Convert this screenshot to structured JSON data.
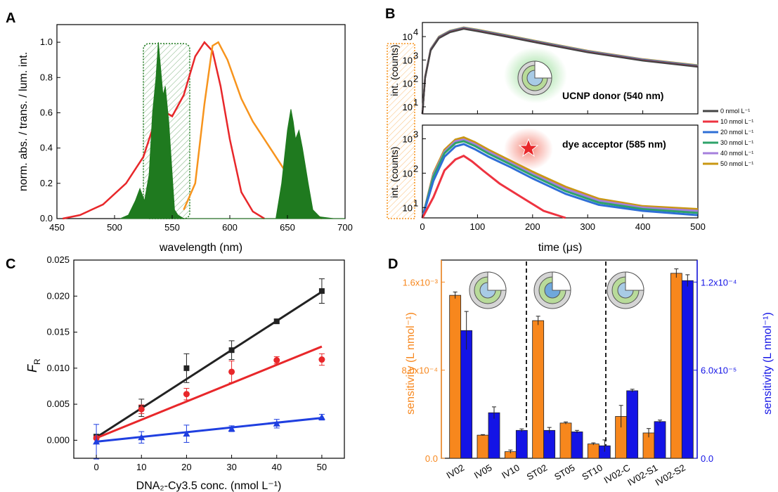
{
  "panels": {
    "A": {
      "letter": "A",
      "xlabel": "wavelength (nm)",
      "ylabel": "norm. abs. / trans. / lum. int.",
      "xticks": [
        "450",
        "500",
        "550",
        "600",
        "650",
        "700"
      ],
      "yticks": [
        "0.0",
        "0.2",
        "0.4",
        "0.6",
        "0.8",
        "1.0"
      ]
    },
    "B": {
      "letter": "B",
      "xlabel": "time (μs)",
      "ylabel_top": "int. (counts)",
      "ylabel_bottom": "int. (counts)",
      "xticks": [
        "0",
        "100",
        "200",
        "300",
        "400",
        "500"
      ],
      "top_yticks": [
        "10",
        "10",
        "10",
        "10"
      ],
      "top_yexp": [
        "1",
        "2",
        "3",
        "4"
      ],
      "bottom_yticks": [
        "10",
        "10",
        "10"
      ],
      "bottom_yexp": [
        "1",
        "2",
        "3"
      ],
      "label_top": "UCNP donor (540 nm)",
      "label_bottom": "dye acceptor (585 nm)",
      "legend": [
        "0 nmol L⁻¹",
        "10 nmol L⁻¹",
        "20 nmol L⁻¹",
        "30 nmol L⁻¹",
        "40 nmol L⁻¹",
        "50 nmol L⁻¹"
      ]
    },
    "C": {
      "letter": "C",
      "xlabel": "DNA₂-Cy3.5 conc. (nmol L⁻¹)",
      "ylabel": "F",
      "ylabel_sub": "R",
      "xticks": [
        "0",
        "10",
        "20",
        "30",
        "40",
        "50"
      ],
      "yticks": [
        "0.000",
        "0.005",
        "0.010",
        "0.015",
        "0.020",
        "0.025"
      ]
    },
    "D": {
      "letter": "D",
      "ylabel_left": "sensitivity (L nmol⁻¹)",
      "ylabel_right": "sensitivity (L nmol⁻¹)",
      "left_yticks": [
        "0.0",
        "8.0x10⁻⁴",
        "1.6x10⁻³"
      ],
      "right_yticks": [
        "0.0",
        "6.0x10⁻⁵",
        "1.2x10⁻⁴"
      ]
    }
  },
  "colors": {
    "green": "#1f7a1f",
    "red": "#e8272a",
    "orange": "#f7941d",
    "black": "#222222",
    "blue": "#1f3fe0",
    "bar_orange": "#f7871d",
    "bar_blue": "#1414e6",
    "conc0": "#444444",
    "conc10": "#ee3340",
    "conc20": "#2f6fd6",
    "conc30": "#2ea36a",
    "conc40": "#a57fdc",
    "conc50": "#c99712"
  },
  "chart_data": [
    {
      "panel": "A",
      "type": "line",
      "xlim": [
        450,
        700
      ],
      "ylim": [
        0,
        1.1
      ],
      "series": [
        {
          "color": "red",
          "x": [
            455,
            470,
            490,
            510,
            525,
            535,
            540,
            545,
            550,
            560,
            570,
            578,
            585,
            592,
            600,
            610,
            620,
            630
          ],
          "y": [
            0.0,
            0.02,
            0.08,
            0.2,
            0.35,
            0.55,
            0.6,
            0.6,
            0.58,
            0.7,
            0.92,
            1.0,
            0.95,
            0.75,
            0.45,
            0.15,
            0.04,
            0.0
          ]
        },
        {
          "color": "orange",
          "x": [
            560,
            570,
            578,
            585,
            590,
            598,
            610,
            620,
            630,
            640,
            650,
            660,
            670,
            680
          ],
          "y": [
            0.05,
            0.2,
            0.65,
            0.98,
            1.0,
            0.9,
            0.68,
            0.55,
            0.45,
            0.35,
            0.25,
            0.12,
            0.04,
            0.0
          ]
        },
        {
          "color": "green",
          "x": [
            505,
            512,
            518,
            522,
            526,
            530,
            533,
            536,
            538,
            540,
            542,
            544,
            547,
            550,
            552,
            555,
            560,
            640,
            645,
            650,
            653,
            655,
            657,
            660,
            663,
            668,
            672,
            678,
            690,
            700
          ],
          "y": [
            0,
            0.02,
            0.1,
            0.17,
            0.1,
            0.25,
            0.6,
            0.8,
            1.0,
            0.85,
            0.7,
            0.75,
            0.55,
            0.25,
            0.05,
            0.02,
            0.0,
            0.0,
            0.2,
            0.5,
            0.62,
            0.55,
            0.45,
            0.5,
            0.4,
            0.2,
            0.05,
            0.01,
            0,
            0
          ]
        }
      ]
    },
    {
      "panel": "B-top",
      "type": "line",
      "ylog": true,
      "xlim": [
        0,
        500
      ],
      "ylim": [
        5,
        40000
      ],
      "series": [
        {
          "color": "conc0",
          "x": [
            0,
            5,
            15,
            30,
            50,
            75,
            100,
            150,
            200,
            300,
            400,
            500
          ],
          "y": [
            5,
            200,
            3000,
            10000,
            18000,
            25000,
            20000,
            12000,
            7000,
            2500,
            1100,
            600
          ]
        }
      ]
    },
    {
      "panel": "B-bottom",
      "type": "line",
      "ylog": true,
      "xlim": [
        0,
        500
      ],
      "ylim": [
        5,
        2500
      ],
      "series": [
        {
          "color": "conc10",
          "x": [
            0,
            20,
            40,
            60,
            75,
            90,
            110,
            140,
            180,
            220,
            260
          ],
          "y": [
            5,
            20,
            120,
            250,
            320,
            220,
            120,
            50,
            20,
            8,
            5
          ]
        },
        {
          "color": "conc20",
          "x": [
            0,
            20,
            40,
            60,
            75,
            95,
            120,
            160,
            200,
            260,
            320,
            400,
            500
          ],
          "y": [
            5,
            60,
            300,
            600,
            700,
            500,
            300,
            150,
            70,
            25,
            12,
            8,
            6
          ]
        },
        {
          "color": "conc30",
          "x": [
            0,
            20,
            40,
            60,
            75,
            95,
            120,
            160,
            200,
            260,
            320,
            400,
            500
          ],
          "y": [
            5,
            80,
            380,
            750,
            850,
            620,
            370,
            180,
            85,
            30,
            14,
            9,
            7
          ]
        },
        {
          "color": "conc40",
          "x": [
            0,
            20,
            40,
            60,
            75,
            95,
            120,
            160,
            200,
            260,
            320,
            400,
            500
          ],
          "y": [
            5,
            90,
            420,
            850,
            950,
            700,
            420,
            200,
            95,
            35,
            16,
            10,
            8
          ]
        },
        {
          "color": "conc50",
          "x": [
            0,
            20,
            40,
            60,
            75,
            95,
            120,
            160,
            200,
            260,
            320,
            400,
            500
          ],
          "y": [
            5,
            100,
            480,
            950,
            1100,
            800,
            480,
            230,
            110,
            40,
            18,
            11,
            9
          ]
        }
      ]
    },
    {
      "panel": "C",
      "type": "scatter",
      "xlim": [
        -5,
        55
      ],
      "ylim": [
        -0.0025,
        0.025
      ],
      "series": [
        {
          "color": "black",
          "x": [
            0,
            10,
            20,
            30,
            40,
            50
          ],
          "y": [
            0.0005,
            0.0045,
            0.01,
            0.0125,
            0.0165,
            0.0207
          ],
          "err": [
            0.0003,
            0.0012,
            0.002,
            0.0013,
            0.0003,
            0.0017
          ],
          "fit": [
            0.0004,
            0.0206
          ]
        },
        {
          "color": "red",
          "x": [
            0,
            10,
            20,
            30,
            40,
            50
          ],
          "y": [
            0.0003,
            0.0043,
            0.0064,
            0.0095,
            0.0111,
            0.0112
          ],
          "err": [
            0.0002,
            0.0006,
            0.0008,
            0.0015,
            0.0005,
            0.0008
          ],
          "fit": [
            0.0003,
            0.013
          ]
        },
        {
          "color": "blue",
          "x": [
            0,
            10,
            20,
            30,
            40,
            50
          ],
          "y": [
            -0.0002,
            0.0004,
            0.0009,
            0.0016,
            0.0023,
            0.0032
          ],
          "err": [
            0.0024,
            0.0008,
            0.0012,
            0.0004,
            0.0006,
            0.0004
          ],
          "fit": [
            -0.0002,
            0.0031
          ]
        }
      ]
    },
    {
      "panel": "D",
      "type": "bar",
      "categories": [
        "IV02",
        "IV05",
        "IV10",
        "ST02",
        "ST05",
        "ST10",
        "IV02-C",
        "IV02-S1",
        "IV02-S2"
      ],
      "left_ylim": [
        0,
        0.0018
      ],
      "right_ylim": [
        0,
        0.000135
      ],
      "series": [
        {
          "color": "bar_orange",
          "axis": "left",
          "values": [
            0.00148,
            0.00021,
            6e-05,
            0.00125,
            0.00032,
            0.00013,
            0.00038,
            0.00023,
            0.00168
          ],
          "err": [
            3e-05,
            5e-06,
            1.5e-05,
            4e-05,
            1e-05,
            1e-05,
            0.0001,
            4e-05,
            4e-05
          ]
        },
        {
          "color": "bar_blue",
          "axis": "right",
          "values": [
            8.7e-05,
            3.1e-05,
            1.9e-05,
            1.9e-05,
            1.8e-05,
            8.5e-06,
            4.6e-05,
            2.5e-05,
            0.000121
          ],
          "err": [
            1.3e-05,
            4e-06,
            1e-06,
            2e-06,
            1e-06,
            4e-06,
            1e-06,
            1e-06,
            4e-06
          ]
        }
      ]
    }
  ]
}
